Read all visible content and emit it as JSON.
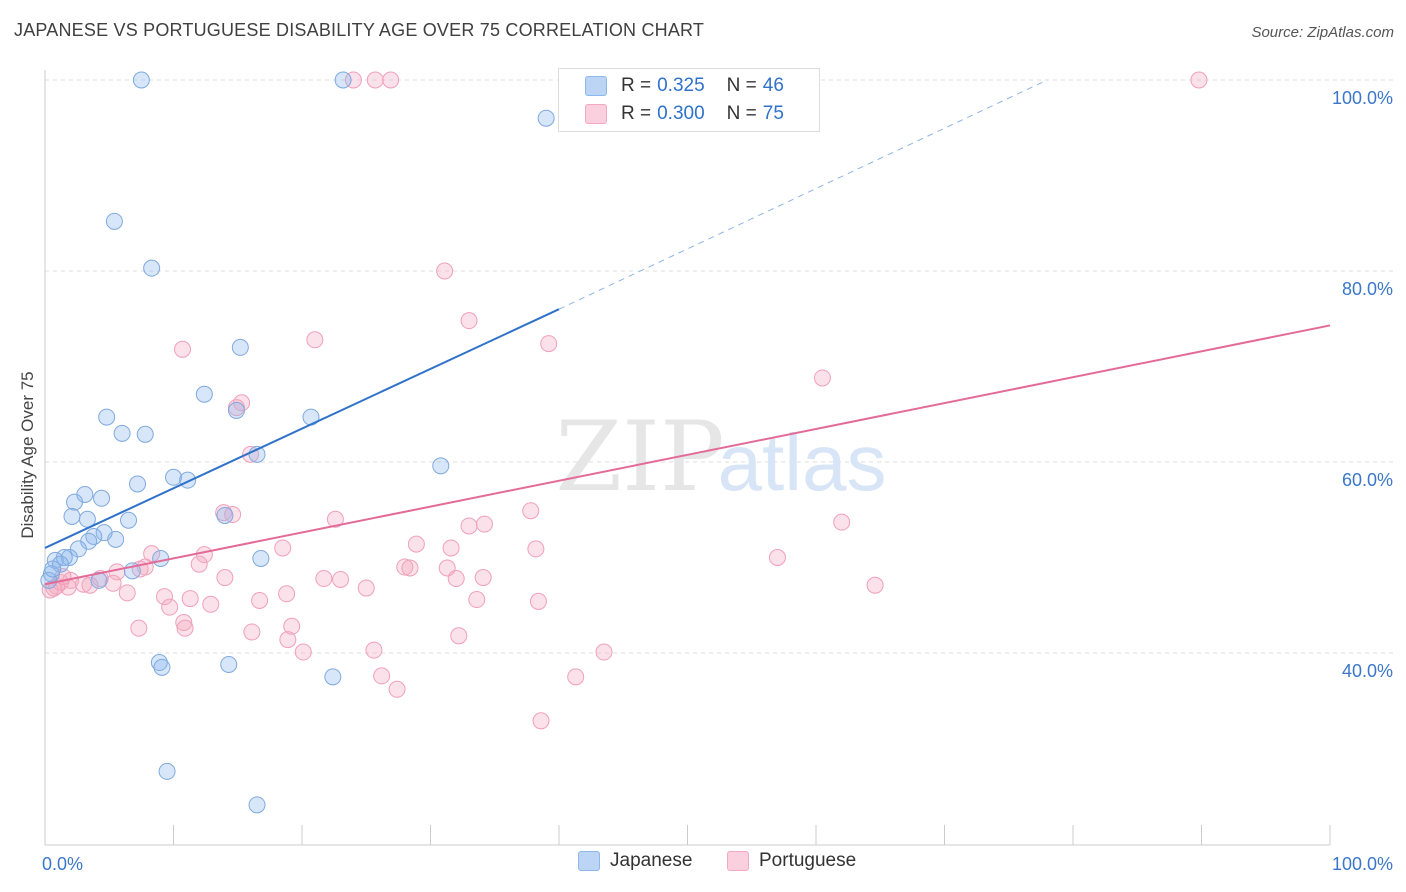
{
  "title": "JAPANESE VS PORTUGUESE DISABILITY AGE OVER 75 CORRELATION CHART",
  "source": "Source: ZipAtlas.com",
  "watermark": {
    "zip": "ZIP",
    "atlas": "atlas"
  },
  "legend": {
    "japanese": {
      "r_label": "R =",
      "r_value": "0.325",
      "n_label": "N =",
      "n_value": "46"
    },
    "portuguese": {
      "r_label": "R =",
      "r_value": "0.300",
      "n_label": "N =",
      "n_value": "75"
    }
  },
  "bottom_legend": {
    "japanese": "Japanese",
    "portuguese": "Portuguese"
  },
  "chart_data": {
    "type": "scatter",
    "title": "JAPANESE VS PORTUGUESE DISABILITY AGE OVER 75 CORRELATION CHART",
    "xlabel": "",
    "ylabel": "Disability Age Over 75",
    "xlim": [
      0,
      100
    ],
    "ylim": [
      22,
      102
    ],
    "x_tick_labels": [
      "0.0%",
      "100.0%"
    ],
    "y_ticks": [
      40,
      60,
      80,
      100
    ],
    "y_tick_labels": [
      "40.0%",
      "60.0%",
      "80.0%",
      "100.0%"
    ],
    "grid": "horizontal dashed",
    "legend_position": "top-center",
    "colors": {
      "japanese": "#8db8ee",
      "japanese_line": "#2f72c9",
      "portuguese": "#f4a9c1",
      "portuguese_line": "#e36b97"
    },
    "series": [
      {
        "name": "Japanese",
        "r": 0.325,
        "n": 46,
        "trend": {
          "x0": 0,
          "y0": 51.0,
          "x1": 40,
          "y1": 76.0,
          "dashed_to_x": 78,
          "dashed_to_y": 100.0
        },
        "points": [
          [
            7.5,
            100
          ],
          [
            23.2,
            100
          ],
          [
            39.0,
            96
          ],
          [
            5.4,
            85.2
          ],
          [
            8.3,
            80.3
          ],
          [
            15.2,
            72.0
          ],
          [
            12.4,
            67.1
          ],
          [
            14.9,
            65.4
          ],
          [
            4.8,
            64.7
          ],
          [
            6.0,
            63.0
          ],
          [
            7.8,
            62.9
          ],
          [
            16.5,
            60.8
          ],
          [
            20.7,
            64.7
          ],
          [
            30.8,
            59.6
          ],
          [
            10.0,
            58.4
          ],
          [
            11.1,
            58.1
          ],
          [
            7.2,
            57.7
          ],
          [
            3.1,
            56.6
          ],
          [
            4.4,
            56.2
          ],
          [
            2.3,
            55.8
          ],
          [
            2.1,
            54.3
          ],
          [
            3.3,
            54.0
          ],
          [
            6.5,
            53.9
          ],
          [
            14.0,
            54.4
          ],
          [
            4.6,
            52.6
          ],
          [
            3.8,
            52.2
          ],
          [
            3.4,
            51.7
          ],
          [
            5.5,
            51.9
          ],
          [
            2.6,
            50.9
          ],
          [
            1.9,
            50.0
          ],
          [
            1.5,
            50.0
          ],
          [
            0.8,
            49.7
          ],
          [
            1.2,
            49.3
          ],
          [
            6.8,
            48.6
          ],
          [
            0.5,
            48.3
          ],
          [
            0.3,
            47.6
          ],
          [
            4.2,
            47.6
          ],
          [
            16.8,
            49.9
          ],
          [
            9.0,
            49.9
          ],
          [
            8.9,
            39.0
          ],
          [
            9.1,
            38.5
          ],
          [
            14.3,
            38.8
          ],
          [
            22.4,
            37.5
          ],
          [
            9.5,
            27.6
          ],
          [
            16.5,
            24.1
          ],
          [
            0.6,
            48.8
          ]
        ]
      },
      {
        "name": "Portuguese",
        "r": 0.3,
        "n": 75,
        "trend": {
          "x0": 0,
          "y0": 47.2,
          "x1": 100,
          "y1": 74.3
        },
        "points": [
          [
            24.0,
            100
          ],
          [
            25.7,
            100
          ],
          [
            26.9,
            100
          ],
          [
            89.8,
            100
          ],
          [
            31.1,
            80.0
          ],
          [
            33.0,
            74.8
          ],
          [
            21.0,
            72.8
          ],
          [
            39.2,
            72.4
          ],
          [
            10.7,
            71.8
          ],
          [
            60.5,
            68.8
          ],
          [
            15.3,
            66.2
          ],
          [
            14.9,
            65.7
          ],
          [
            16.0,
            60.8
          ],
          [
            22.6,
            54.0
          ],
          [
            13.9,
            54.7
          ],
          [
            14.6,
            54.5
          ],
          [
            37.8,
            54.9
          ],
          [
            33.0,
            53.3
          ],
          [
            34.2,
            53.5
          ],
          [
            62.0,
            53.7
          ],
          [
            28.9,
            51.4
          ],
          [
            31.6,
            51.0
          ],
          [
            38.2,
            50.9
          ],
          [
            18.5,
            51.0
          ],
          [
            12.4,
            50.3
          ],
          [
            8.3,
            50.4
          ],
          [
            57.0,
            50.0
          ],
          [
            7.8,
            49.0
          ],
          [
            7.4,
            48.8
          ],
          [
            12.0,
            49.3
          ],
          [
            28.0,
            49.0
          ],
          [
            28.4,
            48.9
          ],
          [
            31.3,
            48.9
          ],
          [
            5.6,
            48.5
          ],
          [
            14.0,
            47.9
          ],
          [
            21.7,
            47.8
          ],
          [
            23.0,
            47.7
          ],
          [
            32.0,
            47.8
          ],
          [
            34.1,
            47.9
          ],
          [
            4.3,
            47.8
          ],
          [
            2.0,
            47.6
          ],
          [
            3.0,
            47.2
          ],
          [
            1.8,
            46.9
          ],
          [
            1.2,
            47.4
          ],
          [
            0.7,
            46.8
          ],
          [
            0.9,
            47.0
          ],
          [
            3.5,
            47.1
          ],
          [
            0.4,
            46.6
          ],
          [
            5.3,
            47.3
          ],
          [
            25.0,
            46.8
          ],
          [
            64.6,
            47.1
          ],
          [
            6.4,
            46.3
          ],
          [
            18.8,
            46.2
          ],
          [
            9.3,
            45.9
          ],
          [
            11.3,
            45.7
          ],
          [
            16.7,
            45.5
          ],
          [
            33.6,
            45.6
          ],
          [
            38.4,
            45.4
          ],
          [
            9.7,
            44.8
          ],
          [
            12.9,
            45.1
          ],
          [
            10.8,
            43.2
          ],
          [
            7.3,
            42.6
          ],
          [
            10.9,
            42.6
          ],
          [
            16.1,
            42.2
          ],
          [
            19.2,
            42.8
          ],
          [
            32.2,
            41.8
          ],
          [
            18.9,
            41.4
          ],
          [
            20.1,
            40.1
          ],
          [
            25.6,
            40.3
          ],
          [
            43.5,
            40.1
          ],
          [
            26.2,
            37.6
          ],
          [
            41.3,
            37.5
          ],
          [
            27.4,
            36.2
          ],
          [
            38.6,
            32.9
          ],
          [
            1.4,
            48.0
          ]
        ]
      }
    ]
  }
}
